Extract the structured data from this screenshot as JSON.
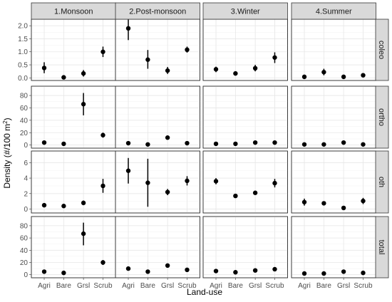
{
  "chart_data": {
    "type": "scatter",
    "title": "",
    "xlabel": "Land-use",
    "ylabel_main": "Density (#/100 m",
    "ylabel_sup": "2",
    "ylabel_close": ")",
    "grid": true,
    "columns": [
      "1.Monsoon",
      "2.Post-monsoon",
      "3.Winter",
      "4.Summer"
    ],
    "rows": [
      {
        "label": "coleo",
        "ylim": [
          -0.1,
          2.25
        ],
        "ticks": [
          "0.0",
          "0.5",
          "1.0",
          "1.5",
          "2.0"
        ],
        "tick_values": [
          0,
          0.5,
          1,
          1.5,
          2
        ]
      },
      {
        "label": "ortho",
        "ylim": [
          -5,
          95
        ],
        "ticks": [
          "0",
          "20",
          "40",
          "60",
          "80"
        ],
        "tick_values": [
          0,
          20,
          40,
          60,
          80
        ]
      },
      {
        "label": "oth",
        "ylim": [
          -0.5,
          7.5
        ],
        "ticks": [
          "0",
          "2",
          "4",
          "6"
        ],
        "tick_values": [
          0,
          2,
          4,
          6
        ]
      },
      {
        "label": "total",
        "ylim": [
          -5,
          95
        ],
        "ticks": [
          "0",
          "20",
          "40",
          "60",
          "80"
        ],
        "tick_values": [
          0,
          20,
          40,
          60,
          80
        ]
      }
    ],
    "categories": [
      "Agri",
      "Bare",
      "Grsl",
      "Scrub"
    ],
    "series": [
      {
        "row": "coleo",
        "col": "1.Monsoon",
        "mean": [
          0.38,
          0.02,
          0.17,
          1.0
        ],
        "lo": [
          0.18,
          0.0,
          0.05,
          0.8
        ],
        "hi": [
          0.6,
          0.05,
          0.3,
          1.2
        ]
      },
      {
        "row": "coleo",
        "col": "2.Post-monsoon",
        "mean": [
          1.9,
          0.7,
          0.28,
          1.08
        ],
        "lo": [
          1.45,
          0.35,
          0.15,
          0.97
        ],
        "hi": [
          2.25,
          1.07,
          0.42,
          1.2
        ]
      },
      {
        "row": "coleo",
        "col": "3.Winter",
        "mean": [
          0.33,
          0.17,
          0.37,
          0.78
        ],
        "lo": [
          0.22,
          0.12,
          0.25,
          0.57
        ],
        "hi": [
          0.43,
          0.22,
          0.5,
          0.98
        ]
      },
      {
        "row": "coleo",
        "col": "4.Summer",
        "mean": [
          0.04,
          0.22,
          0.04,
          0.1
        ],
        "lo": [
          0.0,
          0.1,
          0.0,
          0.04
        ],
        "hi": [
          0.08,
          0.35,
          0.06,
          0.16
        ]
      },
      {
        "row": "ortho",
        "col": "1.Monsoon",
        "mean": [
          4,
          2,
          66,
          16
        ],
        "lo": [
          3,
          1,
          48,
          12
        ],
        "hi": [
          5,
          3,
          84,
          20
        ]
      },
      {
        "row": "ortho",
        "col": "2.Post-monsoon",
        "mean": [
          3,
          1,
          12,
          3
        ],
        "lo": [
          2,
          0,
          10,
          2
        ],
        "hi": [
          4,
          2,
          14,
          4
        ]
      },
      {
        "row": "ortho",
        "col": "3.Winter",
        "mean": [
          2,
          2,
          4,
          4
        ],
        "lo": [
          1,
          1,
          3,
          3
        ],
        "hi": [
          3,
          3,
          5,
          5
        ]
      },
      {
        "row": "ortho",
        "col": "4.Summer",
        "mean": [
          1,
          1,
          4,
          1
        ],
        "lo": [
          0,
          0,
          3,
          0
        ],
        "hi": [
          2,
          2,
          5,
          2
        ]
      },
      {
        "row": "oth",
        "col": "1.Monsoon",
        "mean": [
          0.5,
          0.4,
          0.8,
          3.0
        ],
        "lo": [
          0.35,
          0.15,
          0.5,
          2.1
        ],
        "hi": [
          0.65,
          0.65,
          1.1,
          3.9
        ]
      },
      {
        "row": "oth",
        "col": "2.Post-monsoon",
        "mean": [
          4.95,
          3.4,
          2.2,
          3.65
        ],
        "lo": [
          3.3,
          0.3,
          1.8,
          3.05
        ],
        "hi": [
          6.6,
          6.5,
          2.6,
          4.25
        ]
      },
      {
        "row": "oth",
        "col": "3.Winter",
        "mean": [
          3.6,
          1.7,
          2.1,
          3.35
        ],
        "lo": [
          3.2,
          1.45,
          1.85,
          2.8
        ],
        "hi": [
          4.0,
          1.95,
          2.35,
          3.9
        ]
      },
      {
        "row": "oth",
        "col": "4.Summer",
        "mean": [
          0.9,
          0.75,
          0.15,
          1.05
        ],
        "lo": [
          0.45,
          0.5,
          0.05,
          0.65
        ],
        "hi": [
          1.35,
          1.0,
          0.25,
          1.45
        ]
      },
      {
        "row": "total",
        "col": "1.Monsoon",
        "mean": [
          5,
          3,
          67,
          20
        ],
        "lo": [
          4,
          2,
          48,
          16
        ],
        "hi": [
          6,
          4,
          85,
          24
        ]
      },
      {
        "row": "total",
        "col": "2.Post-monsoon",
        "mean": [
          10,
          5,
          15,
          8
        ],
        "lo": [
          9,
          4,
          13,
          7
        ],
        "hi": [
          11,
          6,
          17,
          9
        ]
      },
      {
        "row": "total",
        "col": "3.Winter",
        "mean": [
          6,
          4,
          7,
          9
        ],
        "lo": [
          5,
          3,
          6,
          8
        ],
        "hi": [
          7,
          5,
          8,
          10
        ]
      },
      {
        "row": "total",
        "col": "4.Summer",
        "mean": [
          2,
          2,
          5,
          3
        ],
        "lo": [
          1,
          1,
          4,
          2
        ],
        "hi": [
          3,
          3,
          6,
          4
        ]
      }
    ]
  }
}
